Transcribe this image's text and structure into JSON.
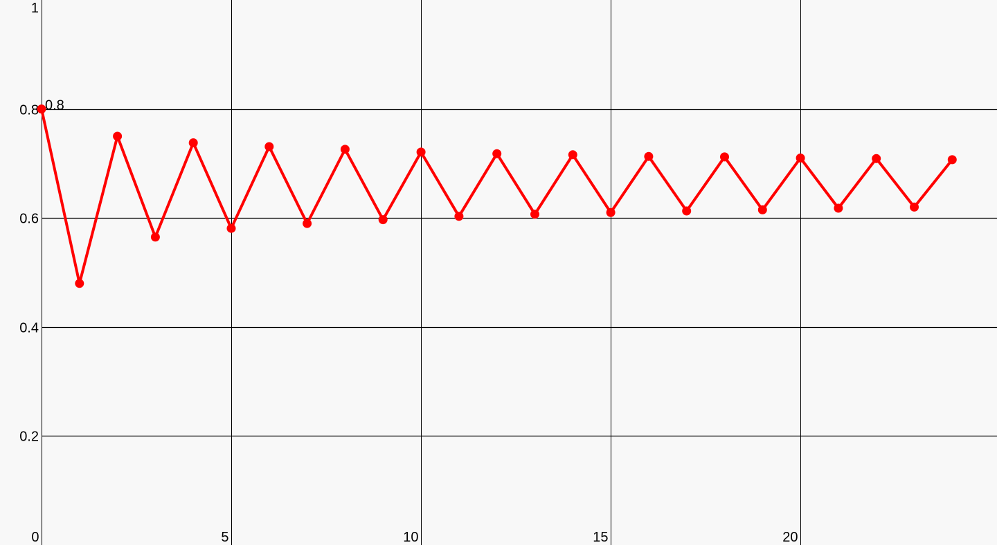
{
  "chart_data": {
    "type": "line",
    "title": "",
    "xlabel": "",
    "ylabel": "",
    "xlim": [
      0,
      25.18
    ],
    "ylim": [
      0,
      1
    ],
    "x_ticks": [
      {
        "value": 0,
        "label": "0"
      },
      {
        "value": 5,
        "label": "5"
      },
      {
        "value": 10,
        "label": "10"
      },
      {
        "value": 15,
        "label": "15"
      },
      {
        "value": 20,
        "label": "20"
      }
    ],
    "y_ticks": [
      {
        "value": 0.2,
        "label": "0.2"
      },
      {
        "value": 0.4,
        "label": "0.4"
      },
      {
        "value": 0.6,
        "label": "0.6"
      },
      {
        "value": 0.8,
        "label": "0.8"
      },
      {
        "value": 1,
        "label": "1"
      }
    ],
    "grid": true,
    "series": [
      {
        "color": "#ff0000",
        "x": [
          0,
          1,
          2,
          3,
          4,
          5,
          6,
          7,
          8,
          9,
          10,
          11,
          12,
          13,
          14,
          15,
          16,
          17,
          18,
          19,
          20,
          21,
          22,
          23,
          24
        ],
        "y": [
          0.8,
          0.48,
          0.75,
          0.565,
          0.738,
          0.581,
          0.731,
          0.59,
          0.726,
          0.597,
          0.721,
          0.603,
          0.718,
          0.607,
          0.716,
          0.61,
          0.713,
          0.613,
          0.712,
          0.615,
          0.71,
          0.618,
          0.709,
          0.62,
          0.707
        ]
      }
    ],
    "annotations": [
      {
        "x": 0,
        "y": 0.8,
        "text": "0.8"
      }
    ]
  }
}
